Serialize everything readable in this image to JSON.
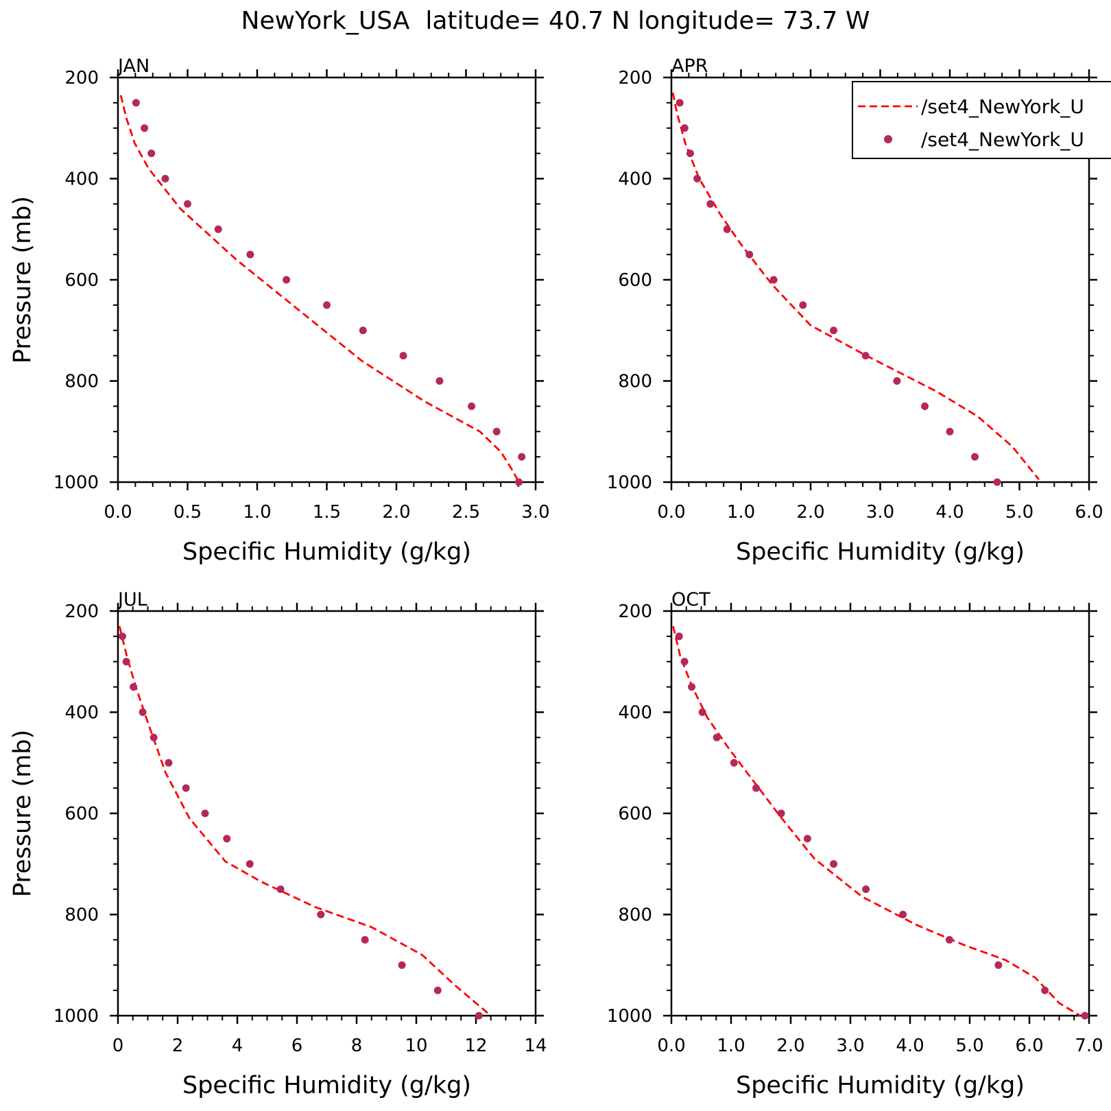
{
  "figure": {
    "title": "NewYork_USA  latitude= 40.7 N longitude= 73.7 W"
  },
  "legend": {
    "entries": [
      {
        "label": "/set4_NewYork_U",
        "style": "dashed-line",
        "color": "#ff0000"
      },
      {
        "label": "/set4_NewYork_U",
        "style": "dot",
        "color": "#b5285a"
      }
    ],
    "placement": "top-right of APR panel"
  },
  "colors": {
    "model_line": "#ff0000",
    "obs_marker": "#b5285a",
    "axes": "#000000"
  },
  "chart_data": [
    {
      "type": "line",
      "panel": "JAN",
      "xlabel": "Specific Humidity (g/kg)",
      "ylabel": "Pressure (mb)",
      "xlim": [
        0,
        3
      ],
      "xticks": [
        0,
        0.5,
        1,
        1.5,
        2,
        2.5,
        3
      ],
      "xtick_labels": [
        "0.0",
        "0.5",
        "1.0",
        "1.5",
        "2.0",
        "2.5",
        "3.0"
      ],
      "ylim": [
        200,
        1000
      ],
      "y_inverted": true,
      "yticks": [
        200,
        400,
        600,
        800,
        1000
      ],
      "ytick_labels": [
        "200",
        "400",
        "600",
        "800",
        "1000"
      ],
      "series": [
        {
          "style": "dashed-line",
          "x": [
            0.02,
            0.06,
            0.12,
            0.22,
            0.45,
            0.85,
            1.3,
            1.75,
            2.2,
            2.6,
            2.75,
            2.83,
            2.88
          ],
          "y": [
            235,
            280,
            330,
            380,
            460,
            560,
            660,
            760,
            840,
            900,
            940,
            975,
            1000
          ]
        },
        {
          "style": "dot",
          "x": [
            0.13,
            0.19,
            0.24,
            0.34,
            0.5,
            0.72,
            0.95,
            1.21,
            1.5,
            1.76,
            2.05,
            2.31,
            2.54,
            2.72,
            2.9,
            2.88
          ],
          "y": [
            250,
            300,
            350,
            400,
            450,
            500,
            550,
            600,
            650,
            700,
            750,
            800,
            850,
            900,
            950,
            1000
          ]
        }
      ]
    },
    {
      "type": "line",
      "panel": "APR",
      "xlabel": "Specific Humidity (g/kg)",
      "ylabel": "",
      "xlim": [
        0,
        6
      ],
      "xticks": [
        0,
        1,
        2,
        3,
        4,
        5,
        6
      ],
      "xtick_labels": [
        "0.0",
        "1.0",
        "2.0",
        "3.0",
        "4.0",
        "5.0",
        "6.0"
      ],
      "ylim": [
        200,
        1000
      ],
      "y_inverted": true,
      "yticks": [
        200,
        400,
        600,
        800,
        1000
      ],
      "ytick_labels": [
        "200",
        "400",
        "600",
        "800",
        "1000"
      ],
      "series": [
        {
          "style": "dashed-line",
          "x": [
            0.02,
            0.08,
            0.2,
            0.4,
            0.7,
            1.0,
            1.45,
            2.0,
            2.8,
            3.3,
            3.8,
            4.4,
            4.9,
            5.28
          ],
          "y": [
            230,
            270,
            330,
            400,
            470,
            530,
            610,
            690,
            750,
            785,
            820,
            870,
            930,
            995
          ]
        },
        {
          "style": "dot",
          "x": [
            0.12,
            0.19,
            0.27,
            0.37,
            0.56,
            0.8,
            1.12,
            1.47,
            1.89,
            2.33,
            2.79,
            3.24,
            3.64,
            4.0,
            4.36,
            4.68
          ],
          "y": [
            250,
            300,
            350,
            400,
            450,
            500,
            550,
            600,
            650,
            700,
            750,
            800,
            850,
            900,
            950,
            1000
          ]
        }
      ]
    },
    {
      "type": "line",
      "panel": "JUL",
      "xlabel": "Specific Humidity (g/kg)",
      "ylabel": "Pressure (mb)",
      "xlim": [
        0,
        14
      ],
      "xticks": [
        0,
        2,
        4,
        6,
        8,
        10,
        12,
        14
      ],
      "xtick_labels": [
        "0",
        "2",
        "4",
        "6",
        "8",
        "10",
        "12",
        "14"
      ],
      "ylim": [
        200,
        1000
      ],
      "y_inverted": true,
      "yticks": [
        200,
        400,
        600,
        800,
        1000
      ],
      "ytick_labels": [
        "200",
        "400",
        "600",
        "800",
        "1000"
      ],
      "series": [
        {
          "style": "dashed-line",
          "x": [
            0.05,
            0.3,
            0.6,
            1.0,
            1.6,
            2.4,
            3.6,
            4.8,
            6.6,
            8.5,
            10.2,
            11.3,
            12.4
          ],
          "y": [
            230,
            290,
            350,
            420,
            520,
            610,
            695,
            735,
            785,
            825,
            880,
            940,
            995
          ]
        },
        {
          "style": "dot",
          "x": [
            0.15,
            0.28,
            0.52,
            0.83,
            1.2,
            1.7,
            2.28,
            2.92,
            3.65,
            4.42,
            5.45,
            6.8,
            8.28,
            9.52,
            10.72,
            12.1
          ],
          "y": [
            250,
            300,
            350,
            400,
            450,
            500,
            550,
            600,
            650,
            700,
            750,
            800,
            850,
            900,
            950,
            1000
          ]
        }
      ]
    },
    {
      "type": "line",
      "panel": "OCT",
      "xlabel": "Specific Humidity (g/kg)",
      "ylabel": "",
      "xlim": [
        0,
        7
      ],
      "xticks": [
        0,
        1,
        2,
        3,
        4,
        5,
        6,
        7
      ],
      "xtick_labels": [
        "0.0",
        "1.0",
        "2.0",
        "3.0",
        "4.0",
        "5.0",
        "6.0",
        "7.0"
      ],
      "ylim": [
        200,
        1000
      ],
      "y_inverted": true,
      "yticks": [
        200,
        400,
        600,
        800,
        1000
      ],
      "ytick_labels": [
        "200",
        "400",
        "600",
        "800",
        "1000"
      ],
      "series": [
        {
          "style": "dashed-line",
          "x": [
            0.03,
            0.15,
            0.35,
            0.6,
            0.95,
            1.4,
            1.85,
            2.4,
            3.2,
            4.1,
            4.9,
            5.6,
            6.1,
            6.5,
            6.85
          ],
          "y": [
            230,
            290,
            350,
            410,
            470,
            540,
            610,
            690,
            765,
            820,
            860,
            890,
            925,
            975,
            1000
          ]
        },
        {
          "style": "dot",
          "x": [
            0.13,
            0.22,
            0.34,
            0.52,
            0.76,
            1.05,
            1.42,
            1.84,
            2.28,
            2.72,
            3.26,
            3.88,
            4.66,
            5.48,
            6.26,
            6.93
          ],
          "y": [
            250,
            300,
            350,
            400,
            450,
            500,
            550,
            600,
            650,
            700,
            750,
            800,
            850,
            900,
            950,
            1000
          ]
        }
      ]
    }
  ]
}
